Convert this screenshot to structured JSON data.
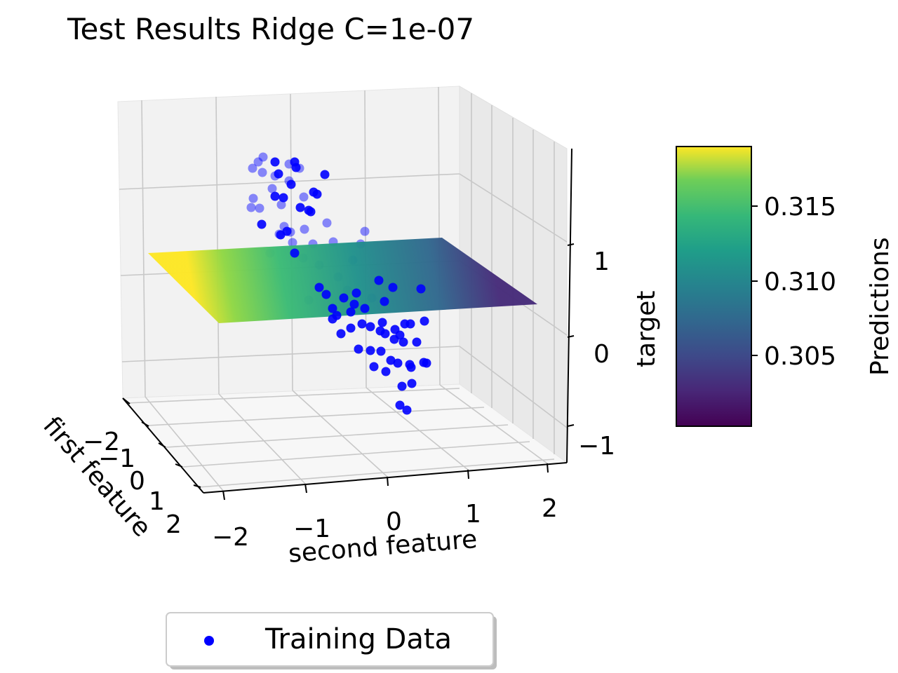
{
  "chart_data": {
    "type": "scatter",
    "title": "Test Results Ridge C=1e-07",
    "axes": {
      "x": {
        "label": "first feature",
        "ticks": [
          "−2",
          "−1",
          "0",
          "1",
          "2"
        ],
        "range": [
          -2.5,
          2.5
        ]
      },
      "y": {
        "label": "second feature",
        "ticks": [
          "−2",
          "−1",
          "0",
          "1",
          "2"
        ],
        "range": [
          -2.5,
          2.5
        ]
      },
      "z": {
        "label": "target",
        "ticks": [
          "−1",
          "0",
          "1"
        ],
        "range": [
          -1.5,
          1.5
        ]
      }
    },
    "surface": {
      "kind": "plane",
      "colormap": "viridis",
      "prediction_range": [
        0.3,
        0.319
      ]
    },
    "colorbar": {
      "label": "Predictions",
      "ticks": [
        "0.305",
        "0.310",
        "0.315"
      ],
      "tick_values": [
        0.305,
        0.31,
        0.315
      ],
      "range": [
        0.3,
        0.319
      ]
    },
    "series": [
      {
        "name": "Training Data",
        "color": "#0000ff",
        "marker": "circle"
      }
    ],
    "legend": {
      "position": "bottom-center",
      "entries": [
        "Training Data"
      ]
    },
    "grid": true
  }
}
